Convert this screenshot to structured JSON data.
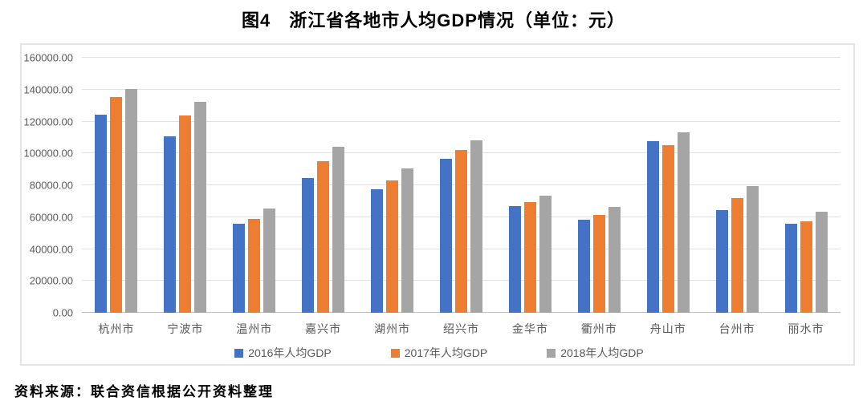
{
  "title": "图4　浙江省各地市人均GDP情况（单位：元）",
  "source": "资料来源：联合资信根据公开资料整理",
  "chart_data": {
    "type": "bar",
    "title": "图4　浙江省各地市人均GDP情况（单位：元）",
    "unit": "元",
    "categories": [
      "杭州市",
      "宁波市",
      "温州市",
      "嘉兴市",
      "湖州市",
      "绍兴市",
      "金华市",
      "衢州市",
      "舟山市",
      "台州市",
      "丽水市"
    ],
    "series": [
      {
        "name": "2016年人均GDP",
        "color": "#4472C4",
        "values": [
          124500,
          110500,
          56000,
          84500,
          77500,
          96500,
          67000,
          58500,
          107500,
          64500,
          56000
        ]
      },
      {
        "name": "2017年人均GDP",
        "color": "#ED7D31",
        "values": [
          135500,
          124000,
          59000,
          95000,
          83000,
          102000,
          69500,
          61500,
          105000,
          72000,
          57500
        ]
      },
      {
        "name": "2018年人均GDP",
        "color": "#A5A5A5",
        "values": [
          140500,
          132500,
          65500,
          104000,
          90500,
          108000,
          73500,
          66500,
          113000,
          79500,
          63500
        ]
      }
    ],
    "ylim": [
      0,
      160000
    ],
    "y_ticks": [
      "160000.00",
      "140000.00",
      "120000.00",
      "100000.00",
      "80000.00",
      "60000.00",
      "40000.00",
      "20000.00",
      "0.00"
    ],
    "grid": true,
    "legend_position": "bottom"
  },
  "colors": {
    "axis_text": "#595959",
    "gridline": "#E2E2E2",
    "baseline": "#BFBFBF",
    "chart_border": "#E4E4E4"
  }
}
